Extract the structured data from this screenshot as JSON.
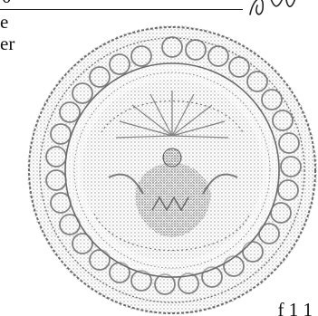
{
  "document": {
    "fragment_top_left": "0",
    "fragment_line_1": "e",
    "fragment_line_2": "er",
    "fragment_bottom_right": "f 1 1"
  },
  "seal": {
    "type": "official circular embossed seal",
    "ink_color": "#6b6b6b"
  },
  "signature": {
    "type": "handwritten signature fragment"
  }
}
